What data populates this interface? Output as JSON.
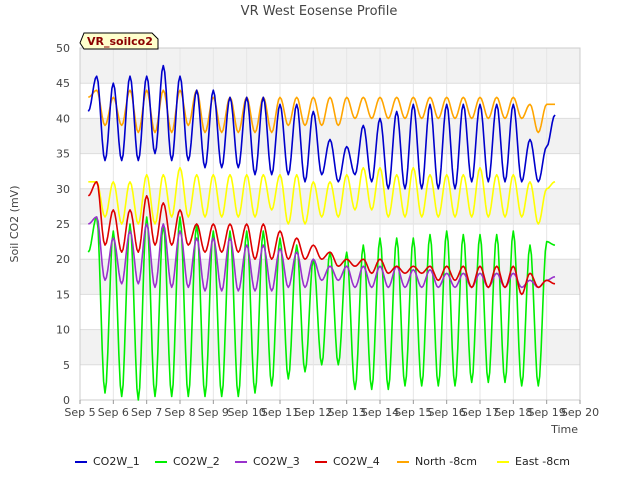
{
  "chart_data": {
    "type": "line",
    "title": "VR West Eosense Profile",
    "xlabel": "Time",
    "ylabel": "Soil CO2 (mV)",
    "badge": "VR_soilco2",
    "xlim": [
      5,
      20
    ],
    "ylim": [
      0,
      50
    ],
    "x_ticks": [
      5,
      6,
      7,
      8,
      9,
      10,
      11,
      12,
      13,
      14,
      15,
      16,
      17,
      18,
      19,
      20
    ],
    "x_tick_labels": [
      "Sep 5",
      "Sep 6",
      "Sep 7",
      "Sep 8",
      "Sep 9",
      "Sep 10",
      "Sep 11",
      "Sep 12",
      "Sep 13",
      "Sep 14",
      "Sep 15",
      "Sep 16",
      "Sep 17",
      "Sep 18",
      "Sep 19",
      "Sep 20"
    ],
    "y_ticks": [
      0,
      5,
      10,
      15,
      20,
      25,
      30,
      35,
      40,
      45,
      50
    ],
    "y_tick_labels": [
      "0",
      "5",
      "10",
      "15",
      "20",
      "25",
      "30",
      "35",
      "40",
      "45",
      "50"
    ],
    "grid": true,
    "legend_position": "bottom",
    "x": [
      5.25,
      5.5,
      5.75,
      6.0,
      6.25,
      6.5,
      6.75,
      7.0,
      7.25,
      7.5,
      7.75,
      8.0,
      8.25,
      8.5,
      8.75,
      9.0,
      9.25,
      9.5,
      9.75,
      10.0,
      10.25,
      10.5,
      10.75,
      11.0,
      11.25,
      11.5,
      11.75,
      12.0,
      12.25,
      12.5,
      12.75,
      13.0,
      13.25,
      13.5,
      13.75,
      14.0,
      14.25,
      14.5,
      14.75,
      15.0,
      15.25,
      15.5,
      15.75,
      16.0,
      16.25,
      16.5,
      16.75,
      17.0,
      17.25,
      17.5,
      17.75,
      18.0,
      18.25,
      18.5,
      18.75,
      19.0,
      19.25
    ],
    "series": [
      {
        "name": "CO2W_1",
        "color": "#0000cc",
        "values": [
          41,
          46,
          34,
          45,
          34,
          46,
          34,
          46,
          35,
          47.5,
          34,
          46,
          34,
          44,
          33,
          44,
          33,
          43,
          33,
          43,
          32,
          43,
          32,
          42,
          32,
          42,
          31,
          41,
          32,
          37,
          31,
          36,
          32,
          39,
          31,
          40,
          30,
          41,
          30,
          42,
          30,
          42,
          30,
          42,
          30,
          42,
          31,
          42,
          31,
          42,
          31,
          42,
          31,
          37,
          31,
          36,
          40.5
        ]
      },
      {
        "name": "CO2W_2",
        "color": "#00ee00",
        "values": [
          21,
          26,
          1,
          24,
          0.5,
          25,
          0,
          26,
          0.5,
          25,
          0.5,
          26,
          0.5,
          25,
          0.5,
          24,
          0.5,
          24,
          0.5,
          24,
          1,
          24,
          2,
          23,
          3,
          22,
          4,
          20,
          5,
          21,
          5,
          21,
          1.5,
          22,
          1.5,
          23,
          1.5,
          23,
          2,
          23,
          2,
          23.5,
          2,
          24,
          2,
          23.5,
          2.5,
          23.5,
          2.5,
          23.5,
          2.5,
          24,
          2,
          22,
          2,
          22.5,
          22
        ]
      },
      {
        "name": "CO2W_3",
        "color": "#9932cc",
        "values": [
          25,
          26,
          17,
          23,
          16.5,
          24,
          16.5,
          25,
          16,
          25,
          16,
          24,
          16,
          23,
          15.5,
          23,
          15.5,
          23,
          15.5,
          22,
          15.5,
          22,
          15.5,
          21.5,
          16,
          21,
          16,
          20,
          17,
          19,
          17,
          19,
          16,
          19,
          16,
          19,
          16,
          19,
          16,
          18.5,
          16,
          18.5,
          16,
          18,
          16,
          18,
          16,
          18,
          16,
          18,
          16,
          18,
          16,
          17,
          16,
          17,
          17.5
        ]
      },
      {
        "name": "CO2W_4",
        "color": "#dd0000",
        "values": [
          29,
          31,
          22,
          27,
          21,
          27,
          21,
          29,
          22,
          28,
          22,
          27,
          22,
          25,
          21,
          25,
          21,
          25,
          21,
          25,
          20,
          25,
          20,
          24,
          20,
          23,
          20,
          22,
          20,
          21,
          19,
          20,
          19,
          20,
          18,
          20,
          18,
          19,
          18,
          19,
          18,
          19,
          17,
          19,
          17,
          19,
          16,
          19,
          16,
          19,
          16,
          19,
          15,
          18,
          16,
          17,
          16.5
        ]
      },
      {
        "name": "North -8cm",
        "color": "#ffa500",
        "values": [
          43,
          44,
          39,
          43,
          39,
          44,
          38,
          44,
          38,
          44,
          38,
          44,
          39,
          44,
          38,
          43,
          38,
          43,
          38,
          43,
          38,
          43,
          38,
          43,
          39,
          43,
          39,
          43,
          39,
          43,
          39,
          43,
          40,
          43,
          40,
          43,
          40,
          43,
          40,
          43,
          40,
          43,
          40,
          43,
          40,
          43,
          40,
          43,
          40,
          43,
          40,
          43,
          40,
          42,
          38,
          42,
          42
        ]
      },
      {
        "name": "East -8cm",
        "color": "#ffff00",
        "values": [
          31,
          31,
          26,
          31,
          25,
          31,
          25,
          32,
          25,
          32,
          26,
          33,
          26,
          32,
          26,
          32,
          26,
          32,
          26,
          32,
          26,
          32,
          27,
          32,
          25,
          32,
          25,
          31,
          26,
          31,
          26,
          32,
          27,
          33,
          27,
          33,
          26,
          32,
          26,
          33,
          26,
          32,
          26,
          32,
          26,
          32,
          26,
          33,
          26,
          32,
          26,
          32,
          26,
          31,
          25,
          30,
          31
        ]
      }
    ]
  }
}
